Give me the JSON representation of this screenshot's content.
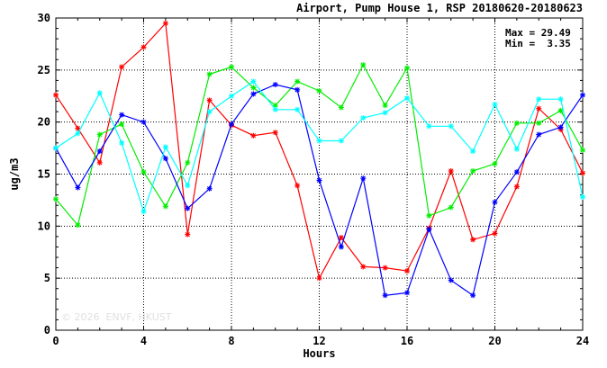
{
  "chart_data": {
    "type": "line",
    "title": "Airport, Pump House 1, RSP 20180620-20180623",
    "xlabel": "Hours",
    "ylabel": "ug/m3",
    "xlim": [
      0,
      24
    ],
    "ylim": [
      0,
      30
    ],
    "xticks": [
      0,
      4,
      8,
      12,
      16,
      20,
      24
    ],
    "yticks": [
      0,
      5,
      10,
      15,
      20,
      25,
      30
    ],
    "grid": true,
    "x": [
      0,
      1,
      2,
      3,
      4,
      5,
      6,
      7,
      8,
      9,
      10,
      11,
      12,
      13,
      14,
      15,
      16,
      17,
      18,
      19,
      20,
      21,
      22,
      23,
      24
    ],
    "series": [
      {
        "color": "#ff0000",
        "values": [
          22.6,
          19.4,
          16.1,
          25.3,
          27.2,
          29.49,
          9.2,
          22.1,
          19.7,
          18.7,
          19.0,
          13.9,
          5.0,
          8.9,
          6.1,
          6.0,
          5.7,
          9.8,
          15.3,
          8.7,
          9.3,
          13.8,
          21.3,
          19.3,
          15.1
        ]
      },
      {
        "color": "#00ee00",
        "values": [
          12.6,
          10.1,
          18.8,
          19.8,
          15.2,
          11.9,
          16.1,
          24.6,
          25.3,
          23.3,
          21.6,
          23.9,
          23.0,
          21.4,
          25.5,
          21.6,
          25.2,
          11.0,
          11.8,
          15.3,
          16.0,
          19.9,
          19.9,
          21.1,
          17.3
        ]
      },
      {
        "color": "#0000ff",
        "values": [
          17.5,
          13.7,
          17.2,
          20.7,
          20.0,
          16.5,
          11.7,
          13.6,
          19.8,
          22.7,
          23.6,
          23.1,
          14.4,
          8.0,
          14.6,
          3.35,
          3.6,
          9.7,
          4.8,
          3.35,
          12.3,
          15.2,
          18.8,
          19.5,
          22.6
        ]
      },
      {
        "color": "#00ffff",
        "values": [
          17.5,
          18.9,
          22.8,
          18.0,
          11.4,
          17.6,
          13.9,
          21.0,
          22.5,
          23.9,
          21.2,
          21.2,
          18.2,
          18.2,
          20.4,
          20.9,
          22.3,
          19.6,
          19.6,
          17.2,
          21.7,
          17.4,
          22.2,
          22.2,
          12.8
        ]
      }
    ],
    "stats": {
      "max_label": "Max = 29.49",
      "min_label": "Min =  3.35"
    },
    "watermark": "© 2026  ENVF, HKUST"
  }
}
